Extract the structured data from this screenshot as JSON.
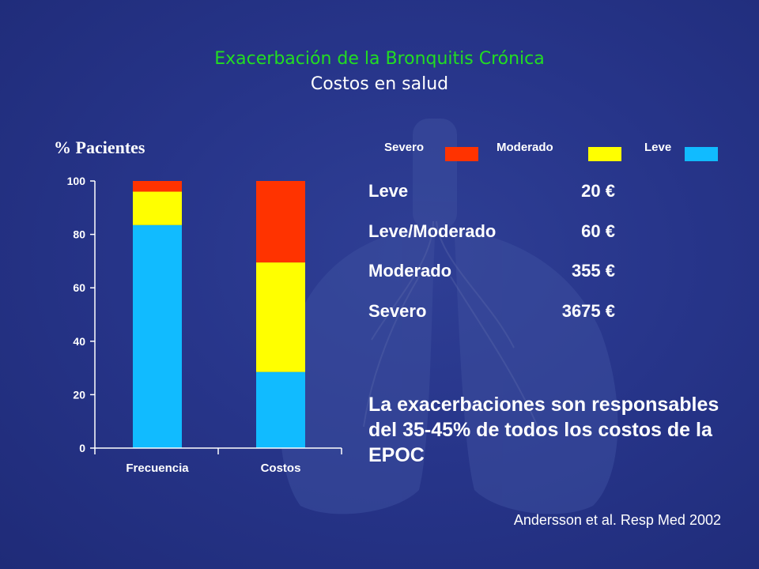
{
  "header": {
    "title": "Exacerbación de la Bronquitis Crónica",
    "subtitle": "Costos en salud"
  },
  "legend": [
    {
      "label": "Severo",
      "color": "#ff3300"
    },
    {
      "label": "Moderado",
      "color": "#ffff00"
    },
    {
      "label": "Leve",
      "color": "#11bbff"
    }
  ],
  "costs": [
    {
      "label": "Leve",
      "value": "20 €"
    },
    {
      "label": "Leve/Moderado",
      "value": "60 €"
    },
    {
      "label": "Moderado",
      "value": "355 €"
    },
    {
      "label": "Severo",
      "value": "3675 €"
    }
  ],
  "statement": "La exacerbaciones son responsables del 35-45% de todos los costos de la EPOC",
  "citation": "Andersson et al. Resp Med 2002",
  "chart_data": {
    "type": "bar",
    "stacked": true,
    "ylabel": "% Pacientes",
    "xlabel": "",
    "categories": [
      "Frecuencia",
      "Costos"
    ],
    "ylim": [
      0,
      100
    ],
    "yticks": [
      0,
      20,
      40,
      60,
      80,
      100
    ],
    "grid": false,
    "legend_position": "top",
    "series": [
      {
        "name": "Leve",
        "color": "#11bbff",
        "values": [
          83.5,
          28.5
        ]
      },
      {
        "name": "Moderado",
        "color": "#ffff00",
        "values": [
          12.5,
          41
        ]
      },
      {
        "name": "Severo",
        "color": "#ff3300",
        "values": [
          4,
          30.5
        ]
      }
    ]
  }
}
